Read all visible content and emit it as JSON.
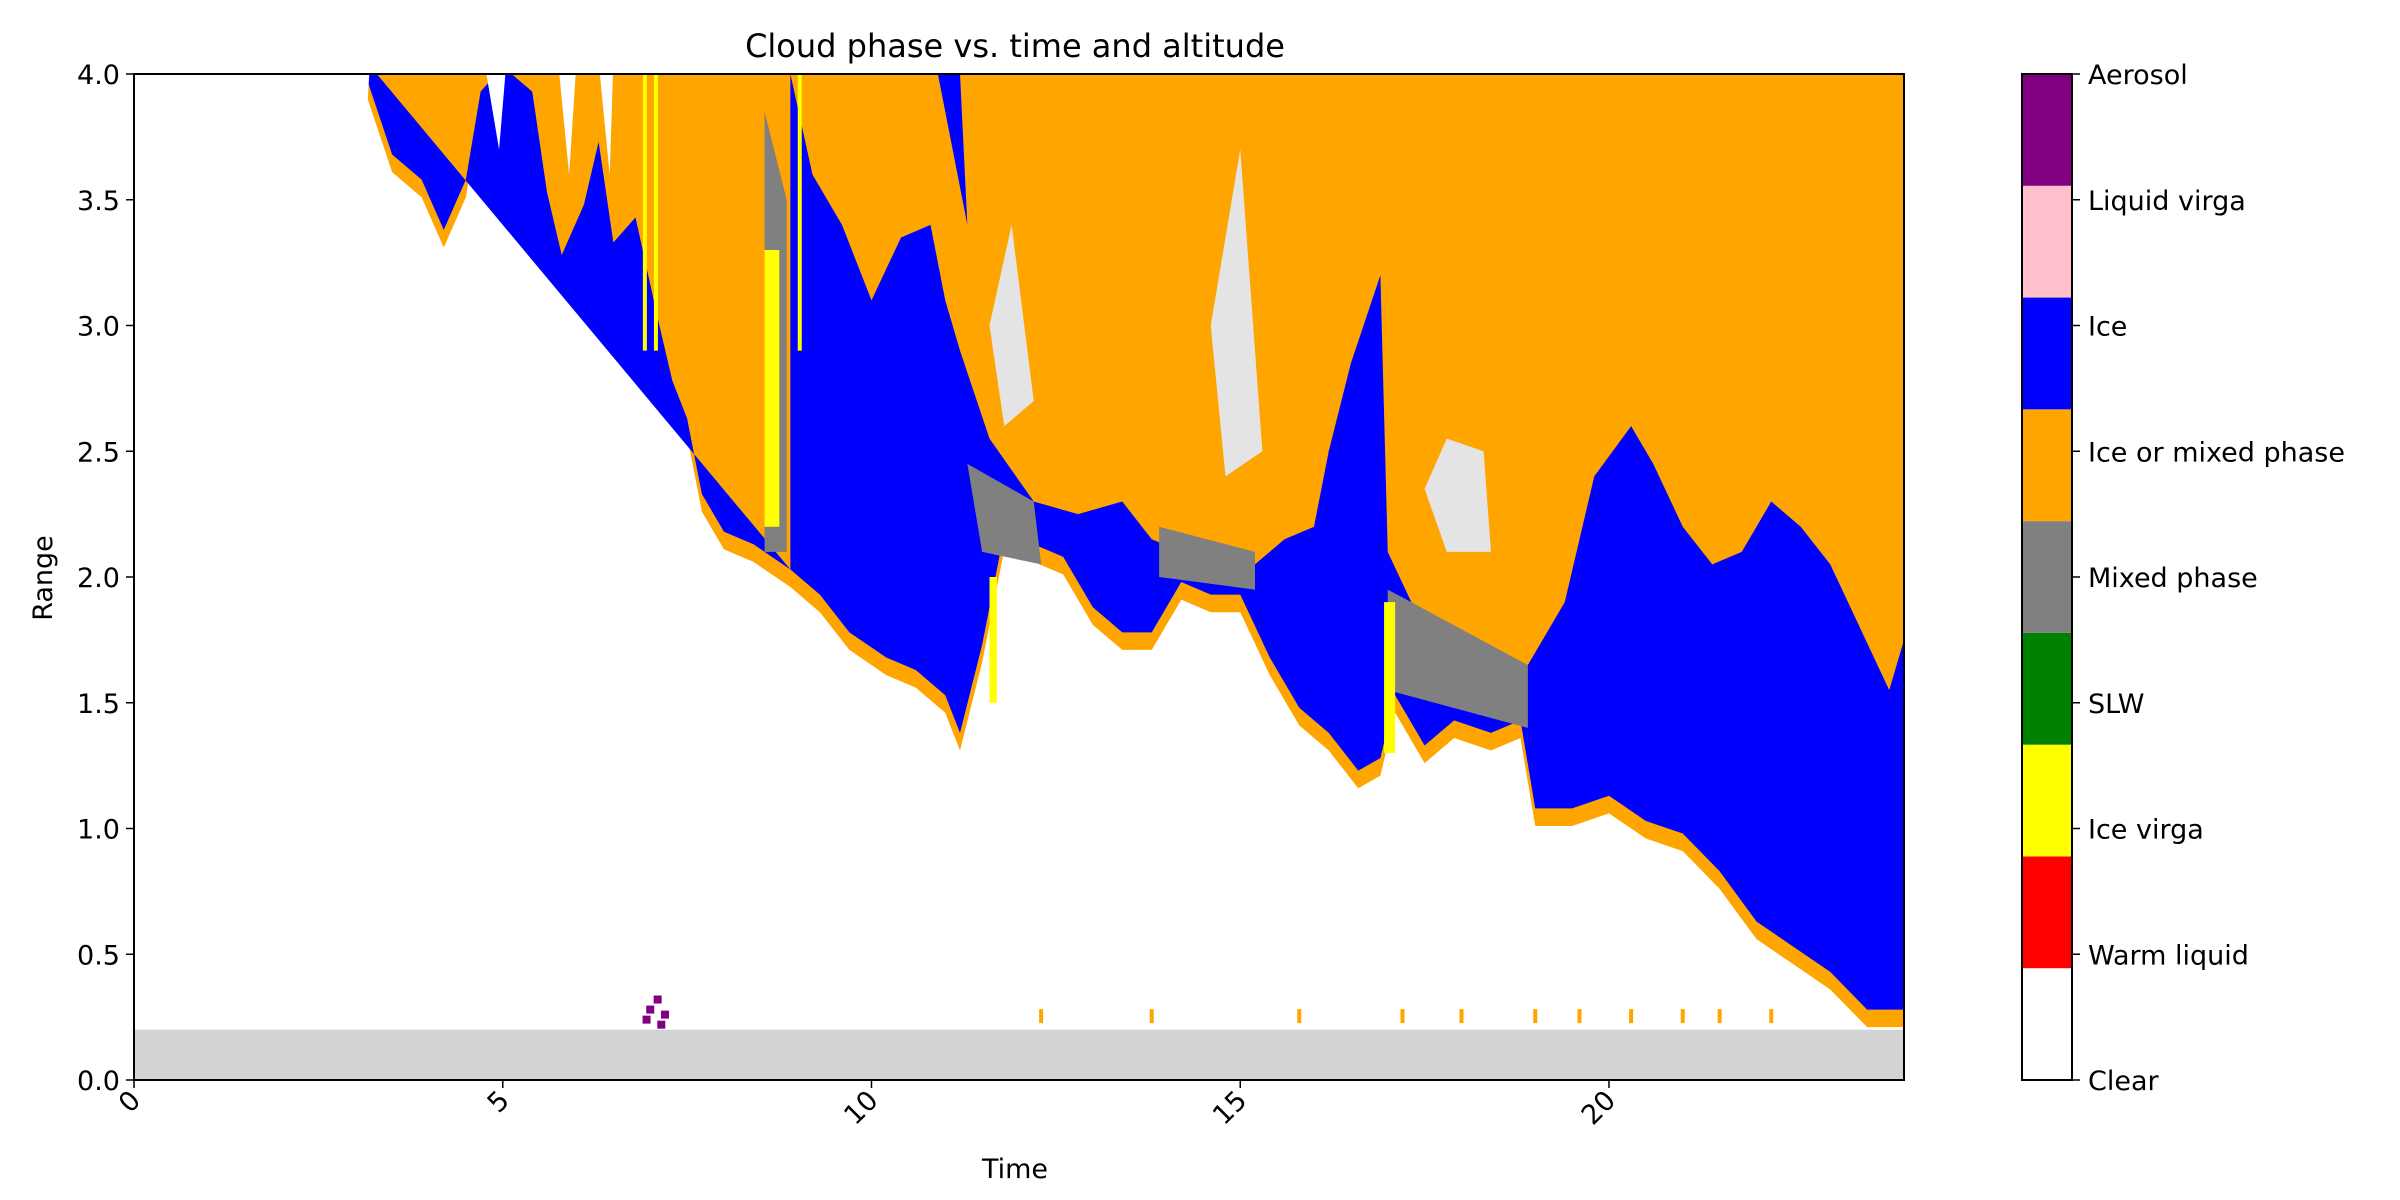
{
  "chart_data": {
    "type": "heatmap",
    "title": "Cloud phase vs. time and altitude",
    "xlabel": "Time",
    "ylabel": "Range",
    "xlim": [
      0,
      24
    ],
    "ylim": [
      0,
      4
    ],
    "xticks": [
      {
        "value": 0,
        "label": "0"
      },
      {
        "value": 5,
        "label": "5"
      },
      {
        "value": 10,
        "label": "10"
      },
      {
        "value": 15,
        "label": "15"
      },
      {
        "value": 20,
        "label": "20"
      }
    ],
    "yticks": [
      {
        "value": 0,
        "label": "0.0"
      },
      {
        "value": 0.5,
        "label": "0.5"
      },
      {
        "value": 1,
        "label": "1.0"
      },
      {
        "value": 1.5,
        "label": "1.5"
      },
      {
        "value": 2,
        "label": "2.0"
      },
      {
        "value": 2.5,
        "label": "2.5"
      },
      {
        "value": 3,
        "label": "3.0"
      },
      {
        "value": 3.5,
        "label": "3.5"
      },
      {
        "value": 4,
        "label": "4.0"
      }
    ],
    "categories": [
      {
        "name": "Clear",
        "color": "#ffffff"
      },
      {
        "name": "Warm liquid",
        "color": "#ff0000"
      },
      {
        "name": "Ice virga",
        "color": "#ffff00"
      },
      {
        "name": "SLW",
        "color": "#008000"
      },
      {
        "name": "Mixed phase",
        "color": "#808080"
      },
      {
        "name": "Ice or mixed phase",
        "color": "#ffa500"
      },
      {
        "name": "Ice",
        "color": "#0000ff"
      },
      {
        "name": "Liquid virga",
        "color": "#ffc0cb"
      },
      {
        "name": "Aerosol",
        "color": "#800080"
      }
    ],
    "no_data_color": "#d3d3d3",
    "no_data_below": 0.2,
    "orange_top_start": 8.9,
    "cloud_base": [
      [
        3.1,
        4.0
      ],
      [
        3.5,
        3.65
      ],
      [
        3.9,
        3.55
      ],
      [
        4.2,
        3.35
      ],
      [
        4.5,
        3.55
      ],
      [
        4.7,
        3.9
      ],
      [
        5.0,
        4.0
      ],
      [
        5.4,
        3.9
      ],
      [
        5.6,
        3.5
      ],
      [
        5.8,
        3.25
      ],
      [
        6.1,
        3.45
      ],
      [
        6.3,
        3.7
      ],
      [
        6.5,
        3.3
      ],
      [
        6.8,
        3.4
      ],
      [
        7.1,
        3.0
      ],
      [
        7.3,
        2.75
      ],
      [
        7.5,
        2.6
      ],
      [
        7.7,
        2.3
      ],
      [
        8.0,
        2.15
      ],
      [
        8.4,
        2.1
      ],
      [
        8.9,
        2.0
      ],
      [
        9.3,
        1.9
      ],
      [
        9.7,
        1.75
      ],
      [
        10.2,
        1.65
      ],
      [
        10.6,
        1.6
      ],
      [
        11.0,
        1.5
      ],
      [
        11.2,
        1.35
      ],
      [
        11.5,
        1.7
      ],
      [
        11.8,
        2.15
      ],
      [
        12.2,
        2.1
      ],
      [
        12.6,
        2.05
      ],
      [
        13.0,
        1.85
      ],
      [
        13.4,
        1.75
      ],
      [
        13.8,
        1.75
      ],
      [
        14.2,
        1.95
      ],
      [
        14.6,
        1.9
      ],
      [
        15.0,
        1.9
      ],
      [
        15.4,
        1.65
      ],
      [
        15.8,
        1.45
      ],
      [
        16.2,
        1.35
      ],
      [
        16.6,
        1.2
      ],
      [
        16.9,
        1.25
      ],
      [
        17.1,
        1.5
      ],
      [
        17.5,
        1.3
      ],
      [
        17.9,
        1.4
      ],
      [
        18.4,
        1.35
      ],
      [
        18.8,
        1.4
      ],
      [
        19.0,
        1.05
      ],
      [
        19.5,
        1.05
      ],
      [
        20.0,
        1.1
      ],
      [
        20.5,
        1.0
      ],
      [
        21.0,
        0.95
      ],
      [
        21.5,
        0.8
      ],
      [
        22.0,
        0.6
      ],
      [
        22.5,
        0.5
      ],
      [
        23.0,
        0.4
      ],
      [
        23.5,
        0.25
      ],
      [
        24.0,
        0.25
      ]
    ],
    "ice_top": [
      [
        8.9,
        4.0
      ],
      [
        9.2,
        3.6
      ],
      [
        9.6,
        3.4
      ],
      [
        10.0,
        3.1
      ],
      [
        10.4,
        3.35
      ],
      [
        10.8,
        3.4
      ],
      [
        11.0,
        3.1
      ],
      [
        11.2,
        2.9
      ],
      [
        11.6,
        2.55
      ],
      [
        12.2,
        2.3
      ],
      [
        12.8,
        2.25
      ],
      [
        13.4,
        2.3
      ],
      [
        13.8,
        2.15
      ],
      [
        14.2,
        2.1
      ],
      [
        14.8,
        2.05
      ],
      [
        15.2,
        2.05
      ],
      [
        15.6,
        2.15
      ],
      [
        16.0,
        2.2
      ],
      [
        16.2,
        2.5
      ],
      [
        16.5,
        2.75
      ],
      [
        16.9,
        3.2
      ],
      [
        17.0,
        2.1
      ],
      [
        17.4,
        1.85
      ],
      [
        17.8,
        1.8
      ],
      [
        18.3,
        1.7
      ],
      [
        18.9,
        1.65
      ],
      [
        19.4,
        1.9
      ],
      [
        19.8,
        2.4
      ],
      [
        20.3,
        2.6
      ],
      [
        20.6,
        2.45
      ],
      [
        21.0,
        2.2
      ],
      [
        21.4,
        2.05
      ],
      [
        21.8,
        2.1
      ],
      [
        22.2,
        2.3
      ],
      [
        22.6,
        2.2
      ],
      [
        23.0,
        2.05
      ],
      [
        23.4,
        1.8
      ],
      [
        23.8,
        1.55
      ],
      [
        24.0,
        1.75
      ]
    ],
    "ice_patches_in_orange": [
      [
        [
          10.9,
          4.0
        ],
        [
          11.3,
          3.4
        ],
        [
          11.2,
          4.0
        ]
      ],
      [
        [
          16.2,
          2.5
        ],
        [
          16.5,
          2.85
        ],
        [
          16.9,
          3.2
        ],
        [
          16.9,
          2.1
        ],
        [
          16.2,
          2.1
        ]
      ]
    ],
    "mixed_phase_regions": [
      [
        [
          8.55,
          3.85
        ],
        [
          8.85,
          3.5
        ],
        [
          8.85,
          2.1
        ],
        [
          8.55,
          2.1
        ]
      ],
      [
        [
          11.3,
          2.45
        ],
        [
          12.2,
          2.3
        ],
        [
          12.3,
          2.05
        ],
        [
          11.5,
          2.1
        ]
      ],
      [
        [
          13.9,
          2.2
        ],
        [
          15.2,
          2.1
        ],
        [
          15.2,
          1.95
        ],
        [
          13.9,
          2.0
        ]
      ],
      [
        [
          17.0,
          1.95
        ],
        [
          18.9,
          1.65
        ],
        [
          18.9,
          1.4
        ],
        [
          17.0,
          1.55
        ]
      ]
    ],
    "ice_virga_regions": [
      [
        [
          8.55,
          3.3
        ],
        [
          8.75,
          3.3
        ],
        [
          8.75,
          2.2
        ],
        [
          8.55,
          2.2
        ]
      ],
      [
        [
          11.6,
          2.0
        ],
        [
          11.7,
          2.0
        ],
        [
          11.7,
          1.5
        ],
        [
          11.6,
          1.5
        ]
      ],
      [
        [
          16.95,
          1.9
        ],
        [
          17.1,
          1.9
        ],
        [
          17.1,
          1.3
        ],
        [
          16.95,
          1.3
        ]
      ]
    ],
    "clear_patches": [
      [
        [
          11.6,
          3.0
        ],
        [
          11.9,
          3.4
        ],
        [
          12.2,
          2.7
        ],
        [
          11.8,
          2.6
        ]
      ],
      [
        [
          14.6,
          3.0
        ],
        [
          15.0,
          3.7
        ],
        [
          15.3,
          2.5
        ],
        [
          14.8,
          2.4
        ]
      ],
      [
        [
          17.5,
          2.35
        ],
        [
          17.8,
          2.55
        ],
        [
          18.3,
          2.5
        ],
        [
          18.4,
          2.1
        ],
        [
          17.8,
          2.1
        ]
      ]
    ],
    "aerosol_points": [
      [
        7.0,
        0.28
      ],
      [
        7.1,
        0.32
      ],
      [
        7.2,
        0.26
      ],
      [
        6.95,
        0.24
      ],
      [
        7.15,
        0.22
      ]
    ],
    "low_cloud_points": [
      [
        12.3,
        0.25
      ],
      [
        13.8,
        0.25
      ],
      [
        15.8,
        0.25
      ],
      [
        17.2,
        0.25
      ],
      [
        18.0,
        0.25
      ],
      [
        19.0,
        0.25
      ],
      [
        19.6,
        0.25
      ],
      [
        20.3,
        0.25
      ],
      [
        21.0,
        0.25
      ],
      [
        21.5,
        0.25
      ],
      [
        22.2,
        0.25
      ]
    ]
  }
}
